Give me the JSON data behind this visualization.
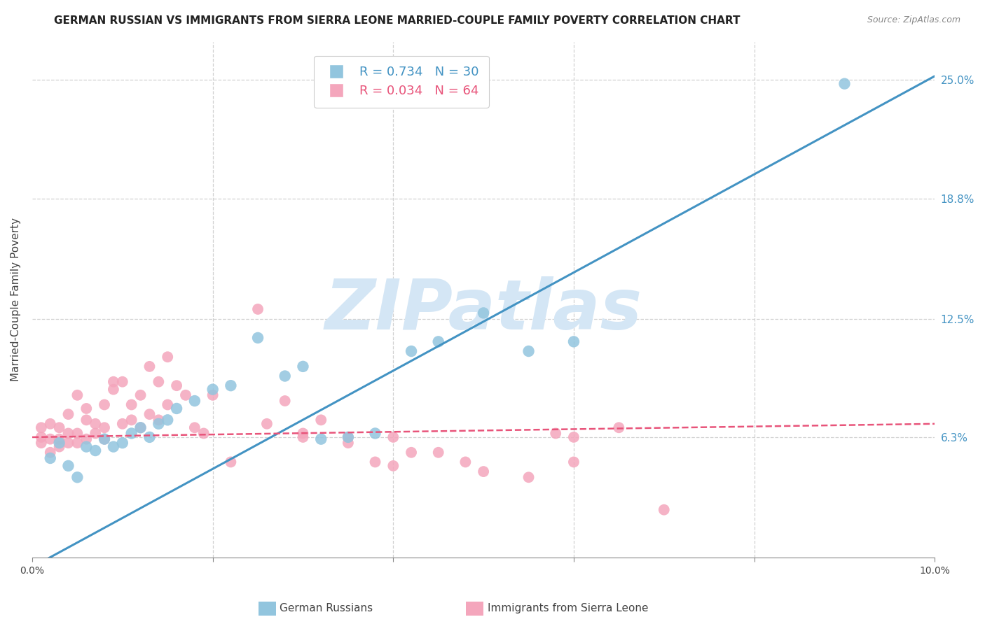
{
  "title": "GERMAN RUSSIAN VS IMMIGRANTS FROM SIERRA LEONE MARRIED-COUPLE FAMILY POVERTY CORRELATION CHART",
  "source": "Source: ZipAtlas.com",
  "ylabel": "Married-Couple Family Poverty",
  "ytick_labels": [
    "6.3%",
    "12.5%",
    "18.8%",
    "25.0%"
  ],
  "ytick_values": [
    0.063,
    0.125,
    0.188,
    0.25
  ],
  "xmin": 0.0,
  "xmax": 0.1,
  "ymin": 0.0,
  "ymax": 0.27,
  "legend_blue_r": "R = 0.734",
  "legend_blue_n": "N = 30",
  "legend_pink_r": "R = 0.034",
  "legend_pink_n": "N = 64",
  "legend_label_blue": "German Russians",
  "legend_label_pink": "Immigrants from Sierra Leone",
  "blue_color": "#92c5de",
  "pink_color": "#f4a6bc",
  "blue_line_color": "#4393c3",
  "pink_line_color": "#e8547a",
  "watermark_color": "#d4e6f5",
  "watermark": "ZIPatlas",
  "blue_scatter_x": [
    0.002,
    0.003,
    0.004,
    0.005,
    0.006,
    0.007,
    0.008,
    0.009,
    0.01,
    0.011,
    0.012,
    0.013,
    0.014,
    0.015,
    0.016,
    0.018,
    0.02,
    0.022,
    0.025,
    0.028,
    0.03,
    0.032,
    0.035,
    0.038,
    0.042,
    0.045,
    0.05,
    0.055,
    0.06,
    0.09
  ],
  "blue_scatter_y": [
    0.052,
    0.06,
    0.048,
    0.042,
    0.058,
    0.056,
    0.062,
    0.058,
    0.06,
    0.065,
    0.068,
    0.063,
    0.07,
    0.072,
    0.078,
    0.082,
    0.088,
    0.09,
    0.115,
    0.095,
    0.1,
    0.062,
    0.063,
    0.065,
    0.108,
    0.113,
    0.128,
    0.108,
    0.113,
    0.248
  ],
  "pink_scatter_x": [
    0.001,
    0.001,
    0.001,
    0.002,
    0.002,
    0.002,
    0.003,
    0.003,
    0.003,
    0.004,
    0.004,
    0.004,
    0.005,
    0.005,
    0.005,
    0.006,
    0.006,
    0.006,
    0.007,
    0.007,
    0.008,
    0.008,
    0.008,
    0.009,
    0.009,
    0.01,
    0.01,
    0.011,
    0.011,
    0.012,
    0.012,
    0.013,
    0.013,
    0.014,
    0.014,
    0.015,
    0.015,
    0.016,
    0.017,
    0.018,
    0.019,
    0.02,
    0.022,
    0.025,
    0.026,
    0.028,
    0.03,
    0.032,
    0.035,
    0.038,
    0.04,
    0.042,
    0.045,
    0.048,
    0.05,
    0.055,
    0.058,
    0.06,
    0.065,
    0.07,
    0.03,
    0.035,
    0.04,
    0.06
  ],
  "pink_scatter_y": [
    0.06,
    0.063,
    0.068,
    0.055,
    0.062,
    0.07,
    0.058,
    0.062,
    0.068,
    0.06,
    0.065,
    0.075,
    0.06,
    0.065,
    0.085,
    0.062,
    0.072,
    0.078,
    0.065,
    0.07,
    0.062,
    0.08,
    0.068,
    0.092,
    0.088,
    0.092,
    0.07,
    0.08,
    0.072,
    0.085,
    0.068,
    0.1,
    0.075,
    0.092,
    0.072,
    0.105,
    0.08,
    0.09,
    0.085,
    0.068,
    0.065,
    0.085,
    0.05,
    0.13,
    0.07,
    0.082,
    0.065,
    0.072,
    0.06,
    0.05,
    0.048,
    0.055,
    0.055,
    0.05,
    0.045,
    0.042,
    0.065,
    0.05,
    0.068,
    0.025,
    0.063,
    0.063,
    0.063,
    0.063
  ],
  "blue_line_x": [
    0.0,
    0.1
  ],
  "blue_line_y": [
    -0.005,
    0.252
  ],
  "pink_line_x": [
    0.0,
    0.1
  ],
  "pink_line_y": [
    0.063,
    0.07
  ],
  "grid_color": "#cccccc",
  "background_color": "#ffffff"
}
